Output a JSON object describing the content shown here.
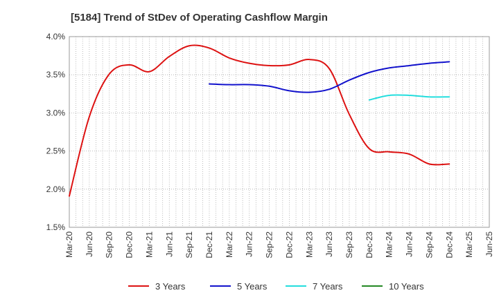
{
  "chart_data": {
    "type": "line",
    "title": "[5184]  Trend of StDev of Operating Cashflow Margin",
    "xlabel": "",
    "ylabel": "",
    "x": [
      "Mar-20",
      "Jun-20",
      "Sep-20",
      "Dec-20",
      "Mar-21",
      "Jun-21",
      "Sep-21",
      "Dec-21",
      "Mar-22",
      "Jun-22",
      "Sep-22",
      "Dec-22",
      "Mar-23",
      "Jun-23",
      "Sep-23",
      "Dec-23",
      "Mar-24",
      "Jun-24",
      "Sep-24",
      "Dec-24",
      "Mar-25",
      "Jun-25"
    ],
    "ylim": [
      1.5,
      4.0
    ],
    "yticks": [
      "1.5%",
      "2.0%",
      "2.5%",
      "3.0%",
      "3.5%",
      "4.0%"
    ],
    "grid": true,
    "legend_position": "bottom",
    "series": [
      {
        "name": "3 Years",
        "color": "#dd1111",
        "values": [
          1.91,
          2.95,
          3.51,
          3.63,
          3.54,
          3.74,
          3.88,
          3.85,
          3.72,
          3.65,
          3.62,
          3.63,
          3.7,
          3.58,
          2.98,
          2.53,
          2.49,
          2.46,
          2.33,
          2.33,
          null,
          null
        ]
      },
      {
        "name": "5 Years",
        "color": "#1111cc",
        "values": [
          null,
          null,
          null,
          null,
          null,
          null,
          null,
          3.38,
          3.37,
          3.37,
          3.35,
          3.29,
          3.27,
          3.31,
          3.43,
          3.53,
          3.59,
          3.62,
          3.65,
          3.67,
          null,
          null
        ]
      },
      {
        "name": "7 Years",
        "color": "#22dddd",
        "values": [
          null,
          null,
          null,
          null,
          null,
          null,
          null,
          null,
          null,
          null,
          null,
          null,
          null,
          null,
          null,
          3.17,
          3.23,
          3.23,
          3.21,
          3.21,
          null,
          null
        ]
      },
      {
        "name": "10 Years",
        "color": "#228822",
        "values": [
          null,
          null,
          null,
          null,
          null,
          null,
          null,
          null,
          null,
          null,
          null,
          null,
          null,
          null,
          null,
          null,
          null,
          null,
          null,
          null,
          null,
          null
        ]
      }
    ]
  }
}
